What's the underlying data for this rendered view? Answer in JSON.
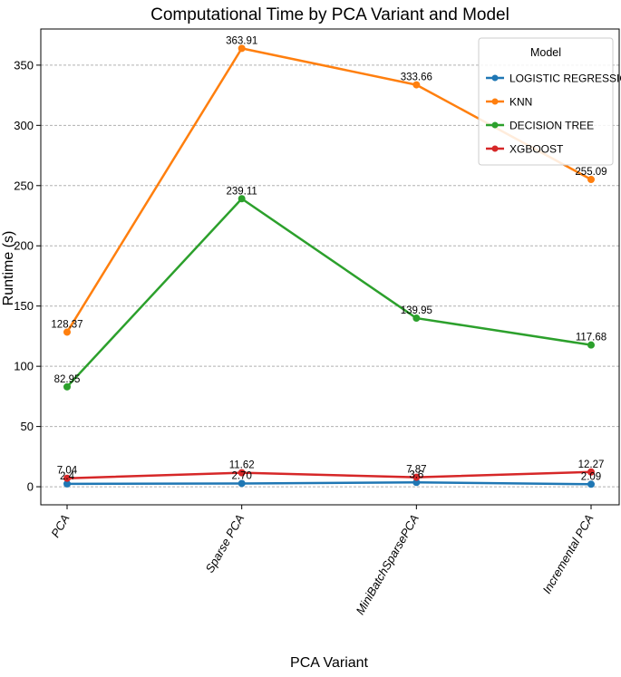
{
  "chart_data": {
    "type": "line",
    "title": "Computational Time by PCA Variant and Model",
    "xlabel": "PCA Variant",
    "ylabel": "Runtime (s)",
    "categories": [
      "PCA",
      "Sparse PCA",
      "MiniBatchSparsePCA",
      "Incremental PCA"
    ],
    "ylim": [
      -15,
      380
    ],
    "yticks": [
      0,
      50,
      100,
      150,
      200,
      250,
      300,
      350
    ],
    "grid": "horizontal dashed",
    "legend": {
      "title": "Model",
      "placement": "top-right"
    },
    "series": [
      {
        "name": "LOGISTIC REGRESSION",
        "color": "#1f77b4",
        "values": [
          2.4,
          2.7,
          3.6,
          2.09
        ],
        "labels": [
          "2.4",
          "2.70",
          "3.6",
          "2.09"
        ]
      },
      {
        "name": "KNN",
        "color": "#ff7f0e",
        "values": [
          128.37,
          363.91,
          333.66,
          255.09
        ],
        "labels": [
          "128.37",
          "363.91",
          "333.66",
          "255.09"
        ]
      },
      {
        "name": "DECISION TREE",
        "color": "#2ca02c",
        "values": [
          82.95,
          239.11,
          139.95,
          117.68
        ],
        "labels": [
          "82.95",
          "239.11",
          "139.95",
          "117.68"
        ]
      },
      {
        "name": "XGBOOST",
        "color": "#d62728",
        "values": [
          7.04,
          11.62,
          7.87,
          12.27
        ],
        "labels": [
          "7.04",
          "11.62",
          "7.87",
          "12.27"
        ]
      }
    ]
  }
}
